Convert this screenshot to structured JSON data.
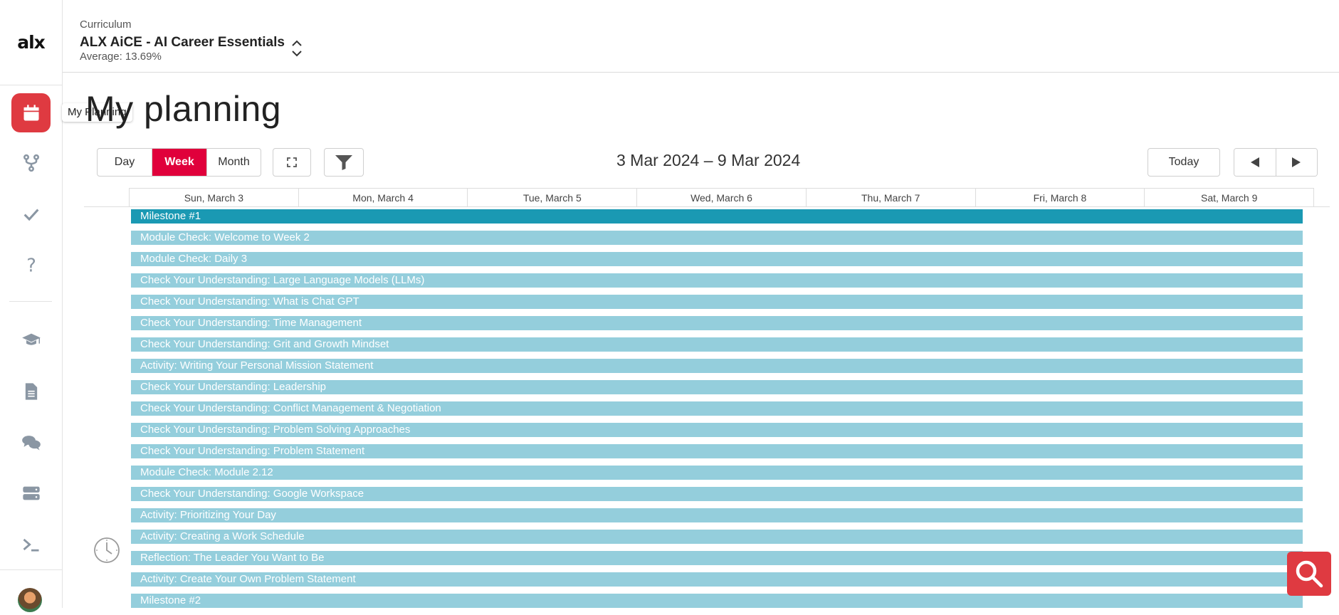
{
  "sidebar": {
    "logo": "alx",
    "tooltip": "My Planning",
    "items": [
      {
        "name": "my-planning",
        "icon": "calendar-icon",
        "active": true
      },
      {
        "name": "projects",
        "icon": "fork-icon"
      },
      {
        "name": "checks",
        "icon": "check-icon"
      },
      {
        "name": "help",
        "icon": "question-icon"
      },
      {
        "name": "courses",
        "icon": "graduation-cap-icon"
      },
      {
        "name": "documents",
        "icon": "document-icon"
      },
      {
        "name": "discussions",
        "icon": "chat-icon"
      },
      {
        "name": "servers",
        "icon": "server-icon"
      },
      {
        "name": "sandboxes",
        "icon": "terminal-icon"
      }
    ]
  },
  "header": {
    "curriculum_label": "Curriculum",
    "curriculum_name": "ALX AiCE - AI Career Essentials",
    "average": "Average: 13.69%"
  },
  "main": {
    "title": "My planning",
    "views": [
      "Day",
      "Week",
      "Month"
    ],
    "active_view": "Week",
    "range": "3 Mar 2024 – 9 Mar 2024",
    "today_label": "Today",
    "days": [
      "Sun, March 3",
      "Mon, March 4",
      "Tue, March 5",
      "Wed, March 6",
      "Thu, March 7",
      "Fri, March 8",
      "Sat, March 9"
    ],
    "events": [
      "Milestone #1",
      "Module Check: Welcome to Week 2",
      "Module Check: Daily 3",
      "Check Your Understanding: Large Language Models (LLMs)",
      "Check Your Understanding: What is Chat GPT",
      "Check Your Understanding: Time Management",
      "Check Your Understanding: Grit and Growth Mindset",
      "Activity: Writing Your Personal Mission Statement",
      "Check Your Understanding: Leadership",
      "Check Your Understanding: Conflict Management & Negotiation",
      "Check Your Understanding: Problem Solving Approaches",
      "Check Your Understanding: Problem Statement",
      "Module Check: Module 2.12",
      "Check Your Understanding: Google Workspace",
      "Activity: Prioritizing Your Day",
      "Activity: Creating a Work Schedule",
      "Reflection: The Leader You Want to Be",
      "Activity: Create Your Own Problem Statement",
      "Milestone #2"
    ]
  },
  "colors": {
    "accent": "#df3a41",
    "active_view": "#e0003b",
    "milestone": "#1a99b3",
    "event": "#94cedc"
  }
}
